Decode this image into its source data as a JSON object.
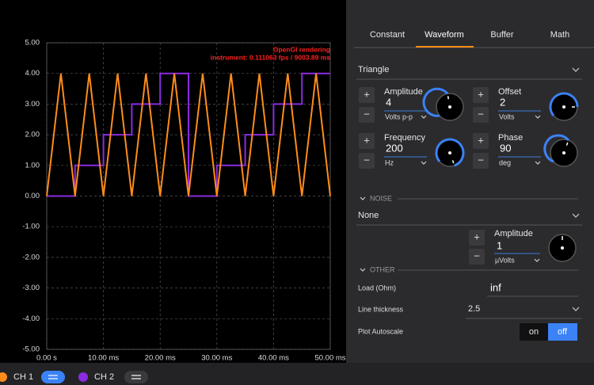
{
  "chart_data": {
    "type": "line",
    "annotations": [
      "OpenGl rendering",
      "instrument: 0.111063 fps / 9003.89 ms"
    ],
    "xlim": [
      0,
      50
    ],
    "xticks": [
      {
        "value": 0,
        "label": "0.00 s"
      },
      {
        "value": 10,
        "label": "10.00 ms"
      },
      {
        "value": 20,
        "label": "20.00 ms"
      },
      {
        "value": 30,
        "label": "30.00 ms"
      },
      {
        "value": 40,
        "label": "40.00 ms"
      },
      {
        "value": 50,
        "label": "50.00 ms"
      }
    ],
    "ylim": [
      -5,
      5
    ],
    "yticks": [
      {
        "value": 5,
        "label": "5.00"
      },
      {
        "value": 4,
        "label": "4.00"
      },
      {
        "value": 3,
        "label": "3.00"
      },
      {
        "value": 2,
        "label": "2.00"
      },
      {
        "value": 1,
        "label": "1.00"
      },
      {
        "value": 0,
        "label": "0.00"
      },
      {
        "value": -1,
        "label": "-1.00"
      },
      {
        "value": -2,
        "label": "-2.00"
      },
      {
        "value": -3,
        "label": "-3.00"
      },
      {
        "value": -4,
        "label": "-4.00"
      },
      {
        "value": -5,
        "label": "-5.00"
      }
    ],
    "grid": true,
    "series": [
      {
        "name": "CH 1",
        "color": "#ff8c1a",
        "x": [
          0,
          2.5,
          5,
          7.5,
          10,
          12.5,
          15,
          17.5,
          20,
          22.5,
          25,
          27.5,
          30,
          32.5,
          35,
          37.5,
          40,
          42.5,
          45,
          47.5,
          50
        ],
        "values": [
          0,
          4,
          0,
          4,
          0,
          4,
          0,
          4,
          0,
          4,
          0,
          4,
          0,
          4,
          0,
          4,
          0,
          4,
          0,
          4,
          0
        ]
      },
      {
        "name": "CH 2",
        "color": "#8a2be2",
        "x": [
          0,
          5,
          5,
          10,
          10,
          15,
          15,
          20,
          20,
          25,
          25,
          30,
          30,
          35,
          35,
          40,
          40,
          45,
          45,
          50
        ],
        "values": [
          0,
          0,
          1,
          1,
          2,
          2,
          3,
          3,
          4,
          4,
          0,
          0,
          1,
          1,
          2,
          2,
          3,
          3,
          4,
          4
        ]
      }
    ]
  },
  "tabs": [
    "Constant",
    "Waveform",
    "Buffer",
    "Math"
  ],
  "waveform": {
    "shape": "Triangle",
    "controls": [
      {
        "label": "Amplitude",
        "value": "4",
        "unit": "Volts p-p"
      },
      {
        "label": "Offset",
        "value": "2",
        "unit": "Volts"
      },
      {
        "label": "Frequency",
        "value": "200",
        "unit": "Hz"
      },
      {
        "label": "Phase",
        "value": "90",
        "unit": "deg"
      }
    ]
  },
  "noise": {
    "heading": "NOISE",
    "type": "None",
    "label": "Amplitude",
    "value": "1",
    "unit": "µVolts"
  },
  "other": {
    "heading": "OTHER",
    "load_label": "Load (Ohm)",
    "load_value": "inf",
    "thickness_label": "Line thickness",
    "thickness_value": "2.5",
    "autoscale_label": "Plot Autoscale",
    "autoscale_options": [
      "on",
      "off"
    ]
  }
}
